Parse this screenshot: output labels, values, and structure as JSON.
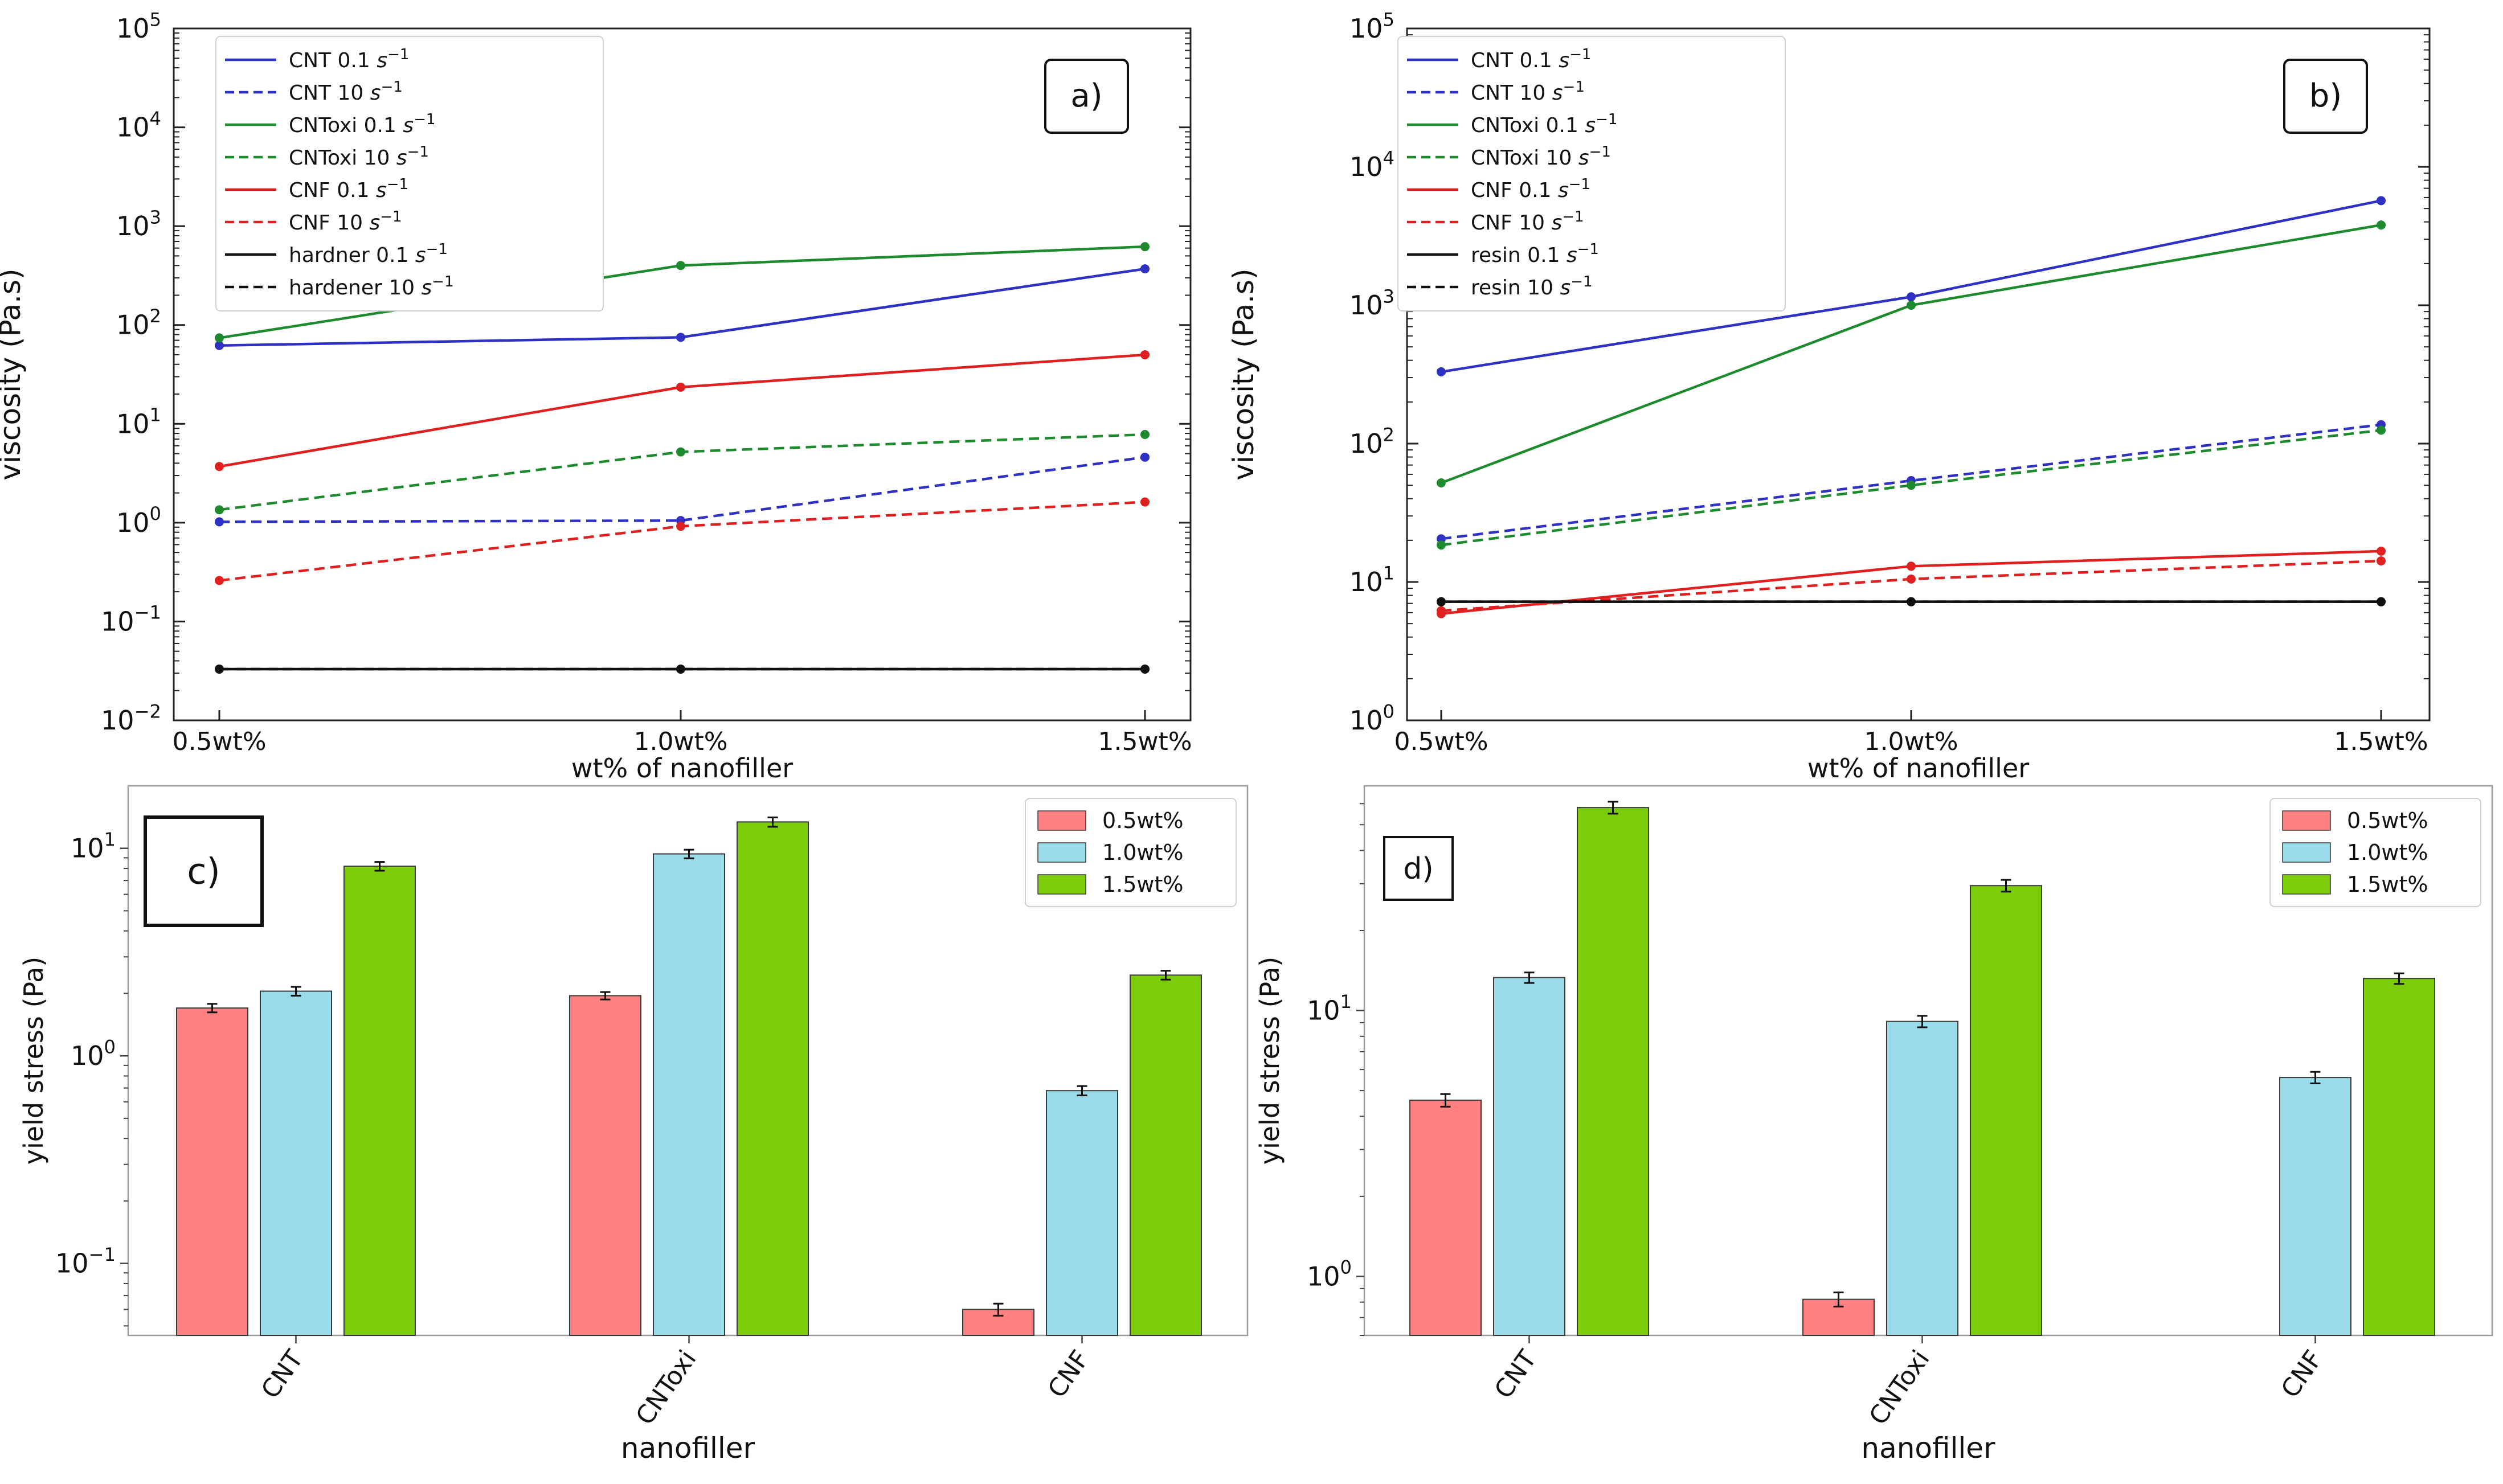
{
  "chart_data": [
    {
      "id": "a",
      "type": "line",
      "panel_label": "a)",
      "xlabel": "wt% of nanofiller",
      "ylabel": "viscosity (Pa.s)",
      "yscale": "log",
      "ylim": [
        0.01,
        100000
      ],
      "yticks": [
        {
          "value": 0.01,
          "base": "10",
          "exp": "−2"
        },
        {
          "value": 0.1,
          "base": "10",
          "exp": "−1"
        },
        {
          "value": 1,
          "base": "10",
          "exp": "0"
        },
        {
          "value": 10,
          "base": "10",
          "exp": "1"
        },
        {
          "value": 100,
          "base": "10",
          "exp": "2"
        },
        {
          "value": 1000,
          "base": "10",
          "exp": "3"
        },
        {
          "value": 10000,
          "base": "10",
          "exp": "4"
        },
        {
          "value": 100000,
          "base": "10",
          "exp": "5"
        }
      ],
      "categories": [
        "0.5wt%",
        "1.0wt%",
        "1.5wt%"
      ],
      "legend_position": "upper-left",
      "series": [
        {
          "name": "CNT 0.1",
          "unit": "s",
          "unit_exp": "−1",
          "color": "#2e31c4",
          "dash": false,
          "values": [
            62,
            75,
            370
          ]
        },
        {
          "name": "CNT 10",
          "unit": "s",
          "unit_exp": "−1",
          "color": "#2e31c4",
          "dash": true,
          "values": [
            1.02,
            1.05,
            4.6
          ]
        },
        {
          "name": "CNToxi 0.1",
          "unit": "s",
          "unit_exp": "−1",
          "color": "#1e8a2e",
          "dash": false,
          "values": [
            74,
            400,
            620
          ]
        },
        {
          "name": "CNToxi 10",
          "unit": "s",
          "unit_exp": "−1",
          "color": "#1e8a2e",
          "dash": true,
          "values": [
            1.35,
            5.2,
            7.8
          ]
        },
        {
          "name": "CNF 0.1",
          "unit": "s",
          "unit_exp": "−1",
          "color": "#e02020",
          "dash": false,
          "values": [
            3.7,
            23.5,
            50
          ]
        },
        {
          "name": "CNF 10",
          "unit": "s",
          "unit_exp": "−1",
          "color": "#e02020",
          "dash": true,
          "values": [
            0.26,
            0.92,
            1.62
          ]
        },
        {
          "name": "hardner 0.1",
          "unit": "s",
          "unit_exp": "−1",
          "color": "#111111",
          "dash": false,
          "values": [
            0.033,
            0.033,
            0.033
          ]
        },
        {
          "name": "hardener 10",
          "unit": "s",
          "unit_exp": "−1",
          "color": "#111111",
          "dash": true,
          "values": [
            0.033,
            0.033,
            0.033
          ]
        }
      ]
    },
    {
      "id": "b",
      "type": "line",
      "panel_label": "b)",
      "xlabel": "wt% of nanofiller",
      "ylabel": "viscosity (Pa.s)",
      "yscale": "log",
      "ylim": [
        1,
        100000
      ],
      "yticks": [
        {
          "value": 1,
          "base": "10",
          "exp": "0"
        },
        {
          "value": 10,
          "base": "10",
          "exp": "1"
        },
        {
          "value": 100,
          "base": "10",
          "exp": "2"
        },
        {
          "value": 1000,
          "base": "10",
          "exp": "3"
        },
        {
          "value": 10000,
          "base": "10",
          "exp": "4"
        },
        {
          "value": 100000,
          "base": "10",
          "exp": "5"
        }
      ],
      "categories": [
        "0.5wt%",
        "1.0wt%",
        "1.5wt%"
      ],
      "legend_position": "upper-left",
      "series": [
        {
          "name": "CNT 0.1",
          "unit": "s",
          "unit_exp": "−1",
          "color": "#2e31c4",
          "dash": false,
          "values": [
            330,
            1150,
            5700
          ]
        },
        {
          "name": "CNT 10",
          "unit": "s",
          "unit_exp": "−1",
          "color": "#2e31c4",
          "dash": true,
          "values": [
            20.5,
            54,
            137
          ]
        },
        {
          "name": "CNToxi 0.1",
          "unit": "s",
          "unit_exp": "−1",
          "color": "#1e8a2e",
          "dash": false,
          "values": [
            52,
            1000,
            3800
          ]
        },
        {
          "name": "CNToxi 10",
          "unit": "s",
          "unit_exp": "−1",
          "color": "#1e8a2e",
          "dash": true,
          "values": [
            18.5,
            50,
            125
          ]
        },
        {
          "name": "CNF 0.1",
          "unit": "s",
          "unit_exp": "−1",
          "color": "#e02020",
          "dash": false,
          "values": [
            5.9,
            13,
            16.7
          ]
        },
        {
          "name": "CNF 10",
          "unit": "s",
          "unit_exp": "−1",
          "color": "#e02020",
          "dash": true,
          "values": [
            6.2,
            10.5,
            14.2
          ]
        },
        {
          "name": "resin 0.1",
          "unit": "s",
          "unit_exp": "−1",
          "color": "#111111",
          "dash": false,
          "values": [
            7.2,
            7.2,
            7.2
          ]
        },
        {
          "name": "resin 10",
          "unit": "s",
          "unit_exp": "−1",
          "color": "#111111",
          "dash": true,
          "values": [
            7.2,
            7.2,
            7.2
          ]
        }
      ]
    },
    {
      "id": "c",
      "type": "bar",
      "panel_label": "c)",
      "xlabel": "nanofiller",
      "ylabel": "yield stress (Pa)",
      "yscale": "log",
      "ylim": [
        0.045,
        20
      ],
      "yticks": [
        {
          "value": 0.1,
          "base": "10",
          "exp": "−1"
        },
        {
          "value": 1,
          "base": "10",
          "exp": "0"
        },
        {
          "value": 10,
          "base": "10",
          "exp": "1"
        }
      ],
      "categories": [
        "CNT",
        "CNToxi",
        "CNF"
      ],
      "legend_position": "upper-right",
      "series": [
        {
          "name": "0.5wt%",
          "color": "#ff8080",
          "values": [
            1.7,
            1.95,
            0.06
          ],
          "errors": [
            0.08,
            0.08,
            0.004
          ]
        },
        {
          "name": "1.0wt%",
          "color": "#99dbe9",
          "values": [
            2.05,
            9.4,
            0.68
          ],
          "errors": [
            0.1,
            0.45,
            0.035
          ]
        },
        {
          "name": "1.5wt%",
          "color": "#7ccc0a",
          "values": [
            8.2,
            13.4,
            2.45
          ],
          "errors": [
            0.4,
            0.7,
            0.12
          ]
        }
      ]
    },
    {
      "id": "d",
      "type": "bar",
      "panel_label": "d)",
      "xlabel": "nanofiller",
      "ylabel": "yield stress (Pa)",
      "yscale": "log",
      "ylim": [
        0.6,
        70
      ],
      "yticks": [
        {
          "value": 1,
          "base": "10",
          "exp": "0"
        },
        {
          "value": 10,
          "base": "10",
          "exp": "1"
        }
      ],
      "categories": [
        "CNT",
        "CNToxi",
        "CNF"
      ],
      "legend_position": "upper-right",
      "series": [
        {
          "name": "0.5wt%",
          "color": "#ff8080",
          "values": [
            4.6,
            0.82,
            null
          ],
          "errors": [
            0.25,
            0.05,
            0
          ]
        },
        {
          "name": "1.0wt%",
          "color": "#99dbe9",
          "values": [
            13.3,
            9.1,
            5.6
          ],
          "errors": [
            0.6,
            0.45,
            0.28
          ]
        },
        {
          "name": "1.5wt%",
          "color": "#7ccc0a",
          "values": [
            58,
            29.5,
            13.2
          ],
          "errors": [
            3,
            1.5,
            0.6
          ]
        }
      ]
    }
  ]
}
